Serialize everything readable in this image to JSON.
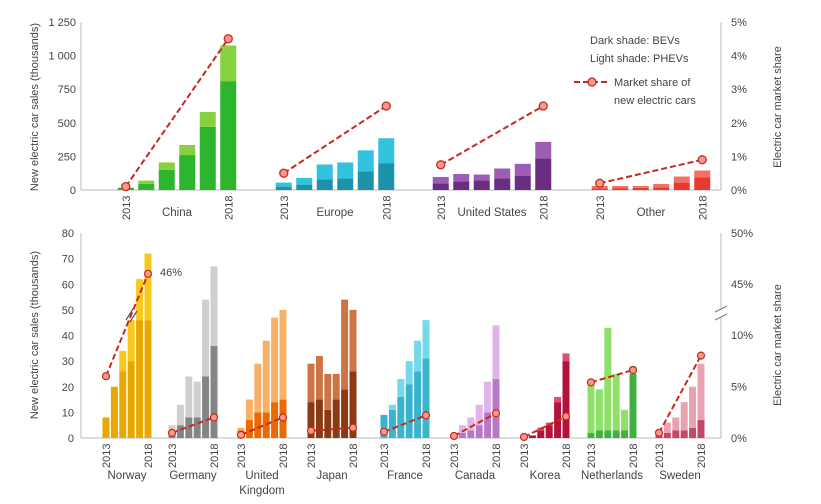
{
  "chart_data": [
    {
      "type": "bar",
      "stacked": true,
      "ylabel": "New electric car sales (thousands)",
      "ylabel_right": "Electric car market share",
      "ylim": [
        0,
        1250
      ],
      "yticks": [
        "0",
        "250",
        "500",
        "750",
        "1 000",
        "1 250"
      ],
      "ylim_right": [
        0,
        5
      ],
      "yticks_right": [
        "0%",
        "1%",
        "2%",
        "3%",
        "4%",
        "5%"
      ],
      "year_labels": [
        "2013",
        "2018"
      ],
      "legend": {
        "position": "top-right",
        "line1": "Dark shade: BEVs",
        "line2": "Light shade: PHEVs",
        "line3": "Market share of",
        "line4": "new electric cars"
      },
      "groups": [
        {
          "name": "China",
          "dark": "#2db52d",
          "light": "#86d13f",
          "bev": [
            15,
            45,
            150,
            260,
            470,
            810
          ],
          "phev": [
            3,
            25,
            55,
            75,
            110,
            265
          ],
          "share_first": 0.1,
          "share_last": 4.5
        },
        {
          "name": "Europe",
          "dark": "#1b93a8",
          "light": "#33c1e0",
          "bev": [
            25,
            40,
            80,
            85,
            140,
            200
          ],
          "phev": [
            30,
            50,
            110,
            120,
            155,
            185
          ],
          "share_first": 0.5,
          "share_last": 2.5
        },
        {
          "name": "United  States",
          "dark": "#6a2d82",
          "light": "#9e5db5",
          "bev": [
            48,
            64,
            72,
            87,
            104,
            236
          ],
          "phev": [
            49,
            55,
            43,
            73,
            91,
            122
          ],
          "share_first": 0.75,
          "share_last": 2.5
        },
        {
          "name": "Other",
          "dark": "#ea3a30",
          "light": "#f27262",
          "bev": [
            12,
            14,
            16,
            20,
            55,
            95
          ],
          "phev": [
            18,
            16,
            14,
            25,
            45,
            50
          ],
          "share_first": 0.2,
          "share_last": 0.9
        }
      ]
    },
    {
      "type": "bar",
      "stacked": true,
      "ylabel": "New electric car sales (thousands)",
      "ylabel_right": "Electric car market share",
      "ylim": [
        0,
        80
      ],
      "yticks": [
        "0",
        "10",
        "20",
        "30",
        "40",
        "50",
        "60",
        "70",
        "80"
      ],
      "ylim_right": [
        0,
        50
      ],
      "yticks_right": [
        "0%",
        "5%",
        "10%",
        "45%",
        "50%"
      ],
      "axis_break": true,
      "year_labels": [
        "2013",
        "2018"
      ],
      "annotation": "46%",
      "groups": [
        {
          "name": "Norway",
          "dark": "#e7a800",
          "light": "#f8c91c",
          "bev": [
            8,
            20,
            26,
            30,
            46,
            46
          ],
          "phev": [
            0,
            0,
            8,
            16,
            16,
            26
          ],
          "share_first": 6,
          "share_last": 46
        },
        {
          "name": "Germany",
          "dark": "#858585",
          "light": "#cfcfcf",
          "bev": [
            3,
            5,
            8,
            8,
            24,
            36
          ],
          "phev": [
            2,
            8,
            16,
            14,
            30,
            31
          ],
          "share_first": 0.5,
          "share_last": 2
        },
        {
          "name": "United Kingdom",
          "dark": "#e86a00",
          "light": "#f7b067",
          "bev": [
            3,
            7,
            10,
            10,
            14,
            15
          ],
          "phev": [
            1,
            8,
            19,
            28,
            33,
            35
          ],
          "share_first": 0.3,
          "share_last": 2
        },
        {
          "name": "Japan",
          "dark": "#8a3a12",
          "light": "#cd7446",
          "bev": [
            14,
            15,
            11,
            15,
            19,
            26
          ],
          "phev": [
            15,
            17,
            14,
            10,
            35,
            24
          ],
          "share_first": 0.7,
          "share_last": 1
        },
        {
          "name": "France",
          "dark": "#3ab4cc",
          "light": "#74d9ea",
          "bev": [
            9,
            11,
            16,
            21,
            26,
            31
          ],
          "phev": [
            0,
            2,
            7,
            9,
            12,
            15
          ],
          "share_first": 0.6,
          "share_last": 2.2
        },
        {
          "name": "Canada",
          "dark": "#b779c5",
          "light": "#e0b4ea",
          "bev": [
            1,
            2,
            3,
            5,
            10,
            23
          ],
          "phev": [
            0,
            3,
            5,
            8,
            12,
            21
          ],
          "share_first": 0.2,
          "share_last": 2.4
        },
        {
          "name": "Korea",
          "dark": "#b3123a",
          "light": "#de4f72",
          "bev": [
            1,
            1,
            3,
            5,
            14,
            30
          ],
          "phev": [
            0,
            0,
            1,
            1,
            2,
            3
          ],
          "share_first": 0.1,
          "share_last": 2.1
        },
        {
          "name": "Netherlands",
          "dark": "#40b040",
          "light": "#8ee068",
          "bev": [
            2,
            3,
            3,
            3,
            3,
            25
          ],
          "phev": [
            20,
            16,
            40,
            22,
            8,
            3
          ],
          "share_first": 5.4,
          "share_last": 6.6
        },
        {
          "name": "Sweden",
          "dark": "#c34866",
          "light": "#e7a3b2",
          "bev": [
            1,
            2,
            3,
            3,
            4,
            7
          ],
          "phev": [
            2,
            4,
            5,
            11,
            16,
            22
          ],
          "share_first": 0.5,
          "share_last": 8
        }
      ]
    }
  ]
}
